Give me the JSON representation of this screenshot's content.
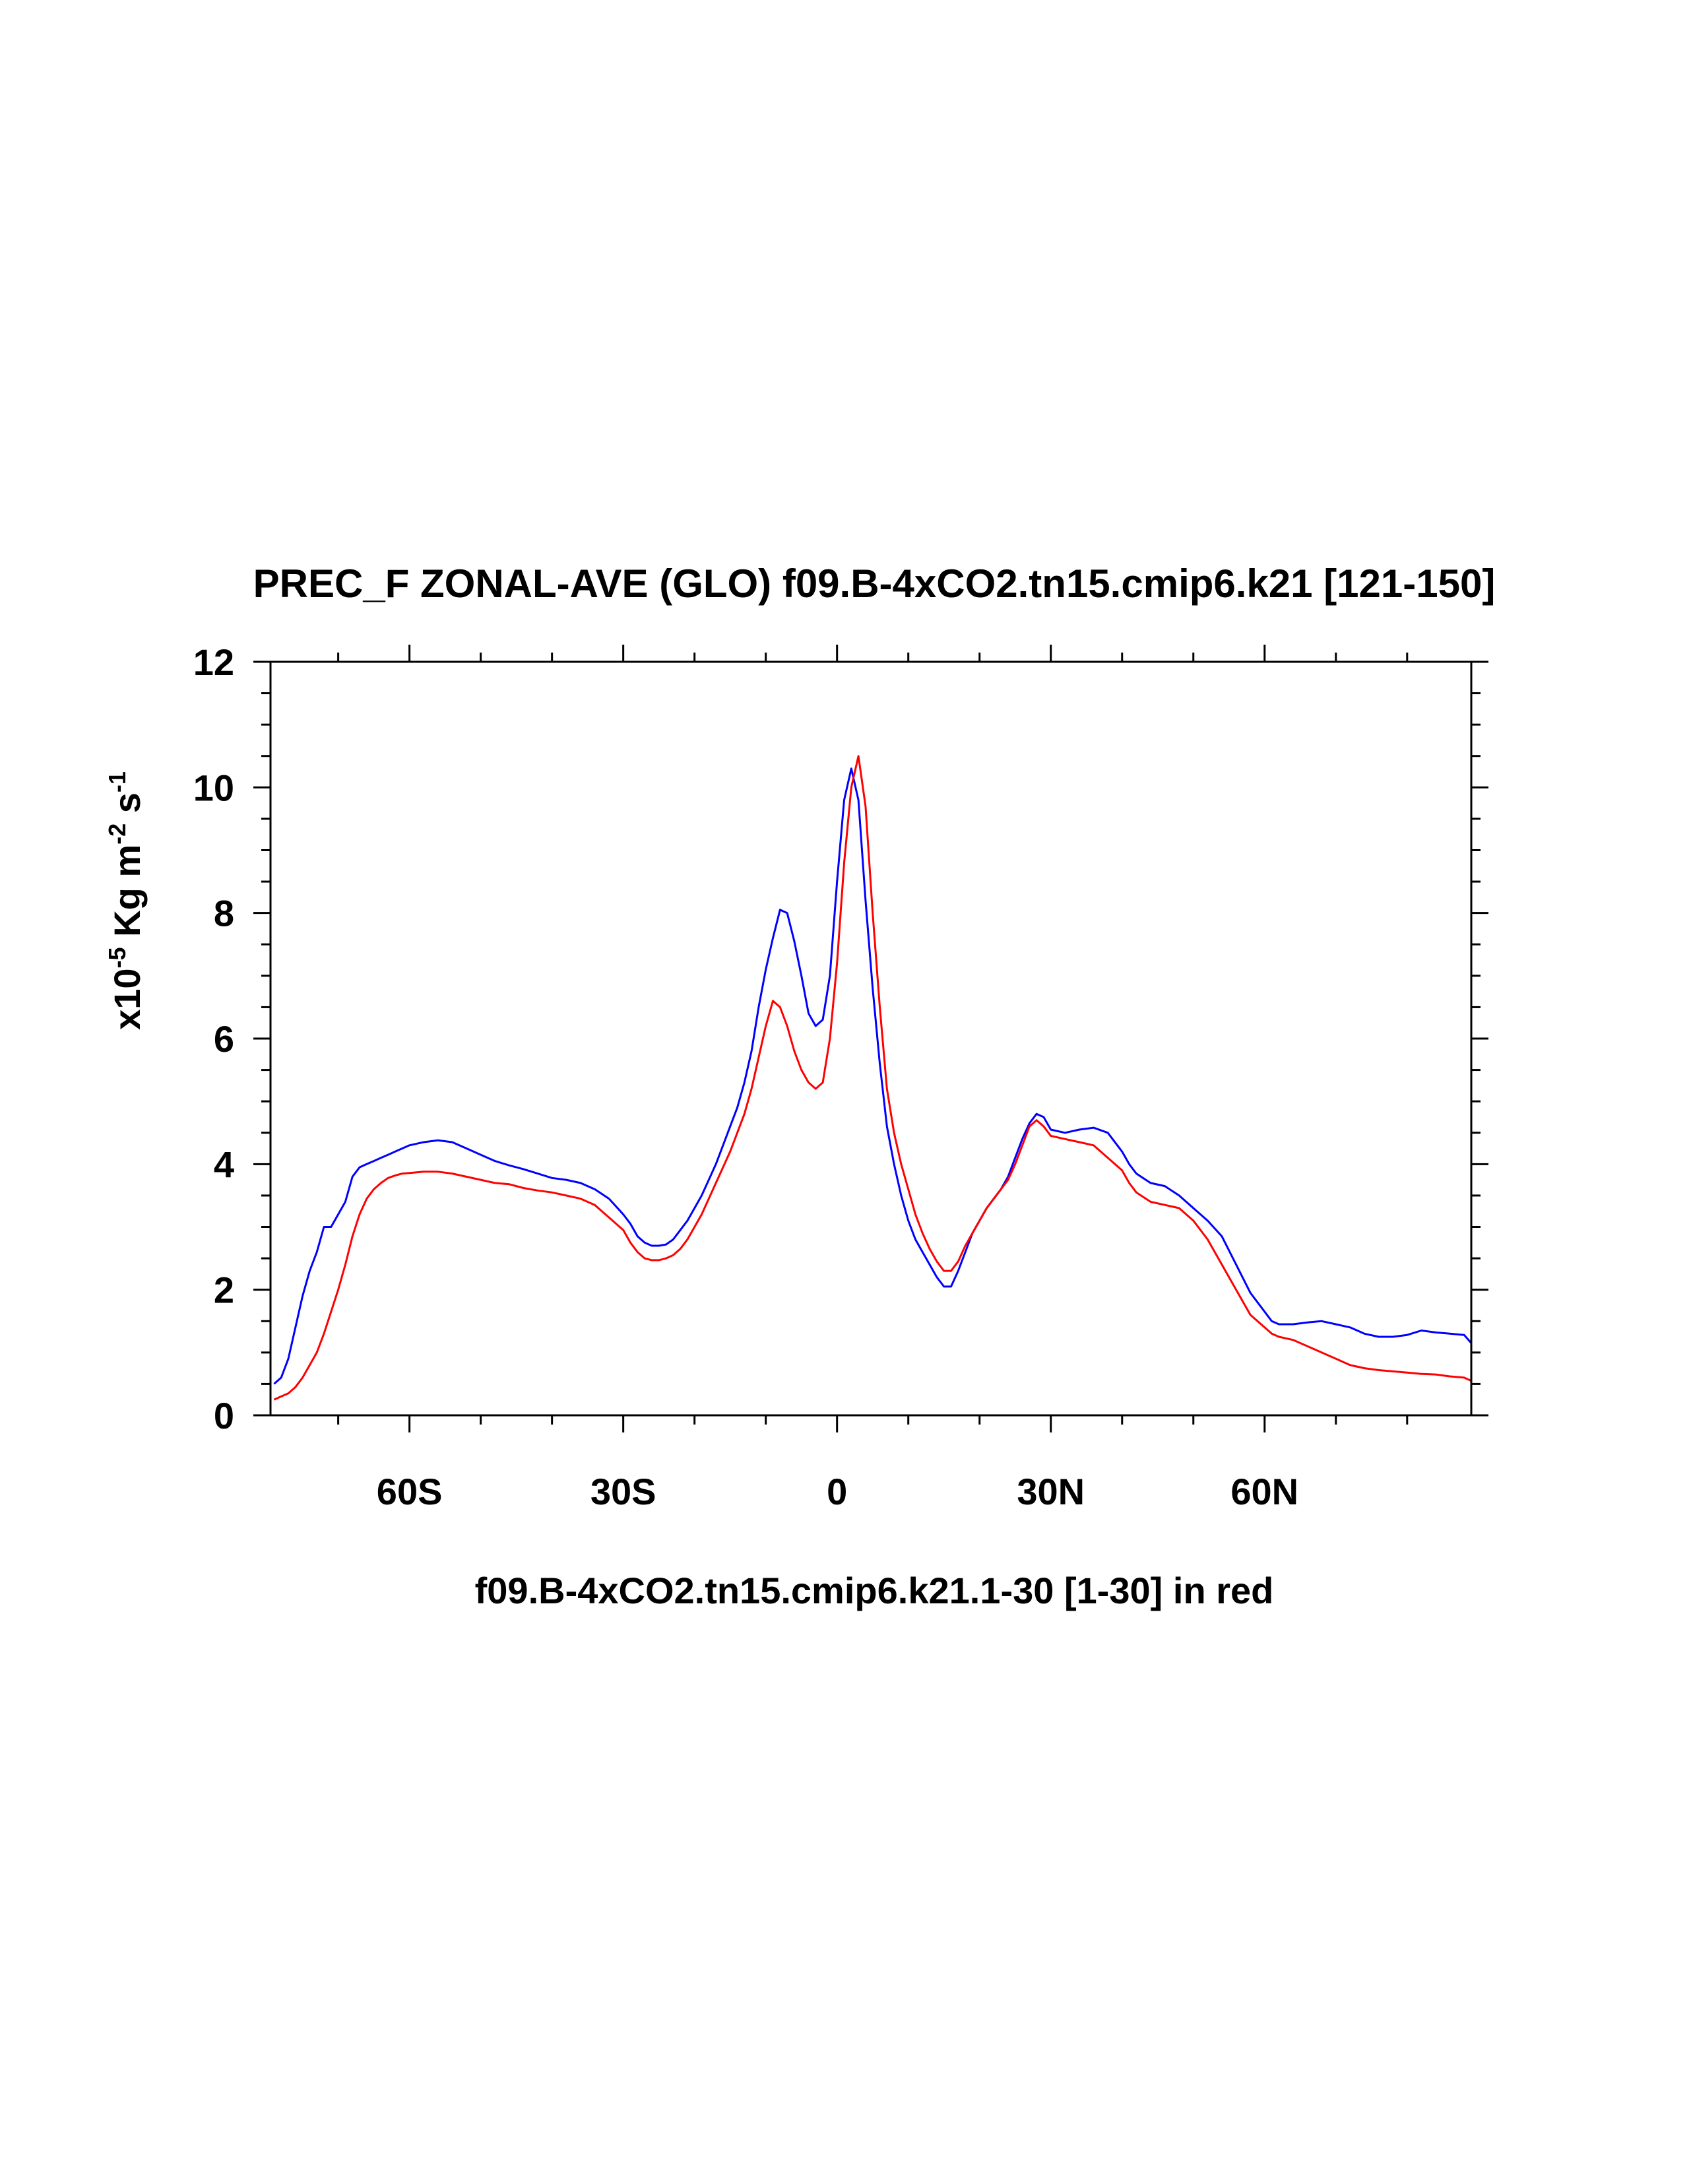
{
  "chart_data": {
    "type": "line",
    "title": "PREC_F ZONAL-AVE (GLO) f09.B-4xCO2.tn15.cmip6.k21 [121-150]",
    "xlabel": "f09.B-4xCO2.tn15.cmip6.k21.1-30 [1-30] in red",
    "ylabel": {
      "prefix": "x10",
      "exp1": "-5",
      "mid": " Kg m",
      "exp2": "-2",
      "mid2": " s",
      "exp3": "-1"
    },
    "xlim": [
      -79.5,
      89
    ],
    "ylim": [
      0,
      12
    ],
    "x_ticks": [
      {
        "value": -60,
        "label": "60S"
      },
      {
        "value": -30,
        "label": "30S"
      },
      {
        "value": 0,
        "label": "0"
      },
      {
        "value": 30,
        "label": "30N"
      },
      {
        "value": 60,
        "label": "60N"
      }
    ],
    "x_minor_step": 10,
    "y_ticks": [
      {
        "value": 0,
        "label": "0"
      },
      {
        "value": 2,
        "label": "2"
      },
      {
        "value": 4,
        "label": "4"
      },
      {
        "value": 6,
        "label": "6"
      },
      {
        "value": 8,
        "label": "8"
      },
      {
        "value": 10,
        "label": "10"
      },
      {
        "value": 12,
        "label": "12"
      }
    ],
    "y_minor_step": 0.5,
    "grid": false,
    "series": [
      {
        "color": "#0000ff",
        "x": [
          -79,
          -78,
          -77,
          -76,
          -75,
          -74,
          -73,
          -72,
          -71,
          -70,
          -69,
          -68,
          -67,
          -66,
          -65,
          -64,
          -63,
          -62,
          -61,
          -60,
          -58,
          -56,
          -54,
          -52,
          -50,
          -48,
          -46,
          -44,
          -42,
          -40,
          -38,
          -36,
          -34,
          -32,
          -30,
          -29,
          -28,
          -27,
          -26,
          -25,
          -24,
          -23,
          -22,
          -21,
          -20,
          -19,
          -18,
          -17,
          -16,
          -15,
          -14,
          -13,
          -12,
          -11,
          -10,
          -9,
          -8,
          -7,
          -6,
          -5,
          -4,
          -3,
          -2,
          -1,
          0,
          1,
          2,
          3,
          4,
          5,
          6,
          7,
          8,
          9,
          10,
          11,
          12,
          13,
          14,
          15,
          16,
          17,
          18,
          19,
          20,
          21,
          22,
          23,
          24,
          25,
          26,
          27,
          28,
          29,
          30,
          32,
          34,
          36,
          38,
          40,
          41,
          42,
          44,
          46,
          48,
          50,
          52,
          54,
          56,
          58,
          60,
          61,
          62,
          64,
          66,
          68,
          70,
          72,
          74,
          76,
          78,
          80,
          82,
          84,
          86,
          88,
          89
        ],
        "y": [
          0.5,
          0.6,
          0.9,
          1.4,
          1.9,
          2.3,
          2.6,
          3.0,
          3.0,
          3.2,
          3.4,
          3.8,
          3.95,
          4.0,
          4.05,
          4.1,
          4.15,
          4.2,
          4.25,
          4.3,
          4.35,
          4.38,
          4.35,
          4.25,
          4.15,
          4.05,
          3.98,
          3.92,
          3.85,
          3.78,
          3.75,
          3.7,
          3.6,
          3.45,
          3.2,
          3.05,
          2.85,
          2.75,
          2.7,
          2.7,
          2.72,
          2.8,
          2.95,
          3.1,
          3.3,
          3.5,
          3.75,
          4.0,
          4.3,
          4.6,
          4.9,
          5.3,
          5.8,
          6.5,
          7.1,
          7.6,
          8.05,
          8.0,
          7.55,
          7.0,
          6.4,
          6.2,
          6.3,
          7.0,
          8.5,
          9.8,
          10.3,
          9.8,
          8.2,
          6.8,
          5.6,
          4.6,
          4.0,
          3.5,
          3.1,
          2.8,
          2.6,
          2.4,
          2.2,
          2.05,
          2.05,
          2.3,
          2.6,
          2.9,
          3.1,
          3.3,
          3.45,
          3.6,
          3.8,
          4.1,
          4.4,
          4.65,
          4.8,
          4.75,
          4.55,
          4.5,
          4.55,
          4.58,
          4.5,
          4.2,
          4.0,
          3.85,
          3.7,
          3.65,
          3.5,
          3.3,
          3.1,
          2.85,
          2.4,
          1.95,
          1.65,
          1.5,
          1.45,
          1.45,
          1.48,
          1.5,
          1.45,
          1.4,
          1.3,
          1.25,
          1.25,
          1.28,
          1.35,
          1.32,
          1.3,
          1.28,
          1.15
        ],
        "x_aligned_note": ""
      },
      {
        "color": "#ff0000",
        "x": [
          -79,
          -78,
          -77,
          -76,
          -75,
          -74,
          -73,
          -72,
          -71,
          -70,
          -69,
          -68,
          -67,
          -66,
          -65,
          -64,
          -63,
          -62,
          -61,
          -60,
          -58,
          -56,
          -54,
          -52,
          -50,
          -48,
          -46,
          -44,
          -42,
          -40,
          -38,
          -36,
          -34,
          -32,
          -30,
          -29,
          -28,
          -27,
          -26,
          -25,
          -24,
          -23,
          -22,
          -21,
          -20,
          -19,
          -18,
          -17,
          -16,
          -15,
          -14,
          -13,
          -12,
          -11,
          -10,
          -9,
          -8,
          -7,
          -6,
          -5,
          -4,
          -3,
          -2,
          -1,
          0,
          1,
          2,
          3,
          4,
          5,
          6,
          7,
          8,
          9,
          10,
          11,
          12,
          13,
          14,
          15,
          16,
          17,
          18,
          19,
          20,
          21,
          22,
          23,
          24,
          25,
          26,
          27,
          28,
          29,
          30,
          32,
          34,
          36,
          38,
          40,
          41,
          42,
          44,
          46,
          48,
          50,
          52,
          54,
          56,
          58,
          60,
          61,
          62,
          64,
          66,
          68,
          70,
          72,
          74,
          76,
          78,
          80,
          82,
          84,
          86,
          88,
          89
        ],
        "y": [
          0.25,
          0.3,
          0.35,
          0.45,
          0.6,
          0.8,
          1.0,
          1.3,
          1.65,
          2.0,
          2.4,
          2.85,
          3.2,
          3.45,
          3.6,
          3.7,
          3.78,
          3.82,
          3.85,
          3.86,
          3.88,
          3.88,
          3.85,
          3.8,
          3.75,
          3.7,
          3.68,
          3.62,
          3.58,
          3.55,
          3.5,
          3.45,
          3.35,
          3.15,
          2.95,
          2.75,
          2.6,
          2.5,
          2.47,
          2.47,
          2.5,
          2.55,
          2.65,
          2.8,
          3.0,
          3.2,
          3.45,
          3.7,
          3.95,
          4.2,
          4.5,
          4.8,
          5.2,
          5.7,
          6.2,
          6.6,
          6.5,
          6.2,
          5.8,
          5.5,
          5.3,
          5.2,
          5.3,
          6.0,
          7.2,
          8.8,
          10.0,
          10.5,
          9.7,
          8.0,
          6.5,
          5.2,
          4.5,
          4.0,
          3.6,
          3.2,
          2.9,
          2.65,
          2.45,
          2.3,
          2.3,
          2.45,
          2.7,
          2.9,
          3.1,
          3.3,
          3.45,
          3.6,
          3.75,
          4.0,
          4.3,
          4.6,
          4.7,
          4.6,
          4.45,
          4.4,
          4.35,
          4.3,
          4.1,
          3.9,
          3.7,
          3.55,
          3.4,
          3.35,
          3.3,
          3.1,
          2.8,
          2.4,
          2.0,
          1.6,
          1.4,
          1.3,
          1.25,
          1.2,
          1.1,
          1.0,
          0.9,
          0.8,
          0.75,
          0.72,
          0.7,
          0.68,
          0.66,
          0.65,
          0.62,
          0.6,
          0.55
        ],
        "x_aligned_note": ""
      }
    ]
  }
}
